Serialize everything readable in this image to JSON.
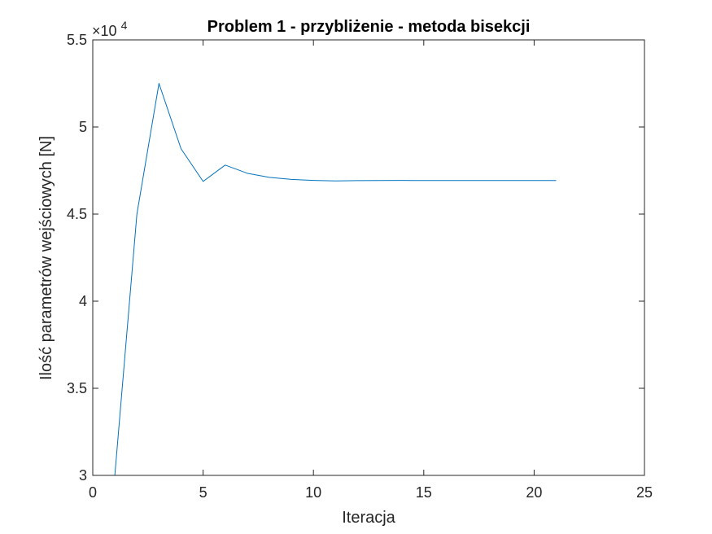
{
  "chart_data": {
    "type": "line",
    "title": "Problem 1 - przybliżenie - metoda bisekcji",
    "xlabel": "Iteracja",
    "ylabel": "Ilość parametrów wejściowych [N]",
    "y_exponent_base": "×10",
    "y_exponent_power": "4",
    "xlim": [
      0,
      25
    ],
    "ylim": [
      30000,
      55000
    ],
    "xticks": [
      0,
      5,
      10,
      15,
      20,
      25
    ],
    "yticks": [
      30000,
      35000,
      40000,
      45000,
      50000,
      55000
    ],
    "ytick_labels": [
      "3",
      "3.5",
      "4",
      "4.5",
      "5",
      "5.5"
    ],
    "grid": false,
    "series": [
      {
        "color": "#0072bd",
        "x": [
          1,
          2,
          3,
          4,
          5,
          6,
          7,
          8,
          9,
          10,
          11,
          12,
          13,
          14,
          15,
          16,
          17,
          18,
          19,
          20,
          21
        ],
        "y": [
          30000,
          45000,
          52500,
          48750,
          46875,
          47812,
          47344,
          47109,
          46992,
          46934,
          46904,
          46919,
          46927,
          46931,
          46929,
          46928,
          46928,
          46928,
          46928,
          46928,
          46928
        ]
      }
    ]
  }
}
